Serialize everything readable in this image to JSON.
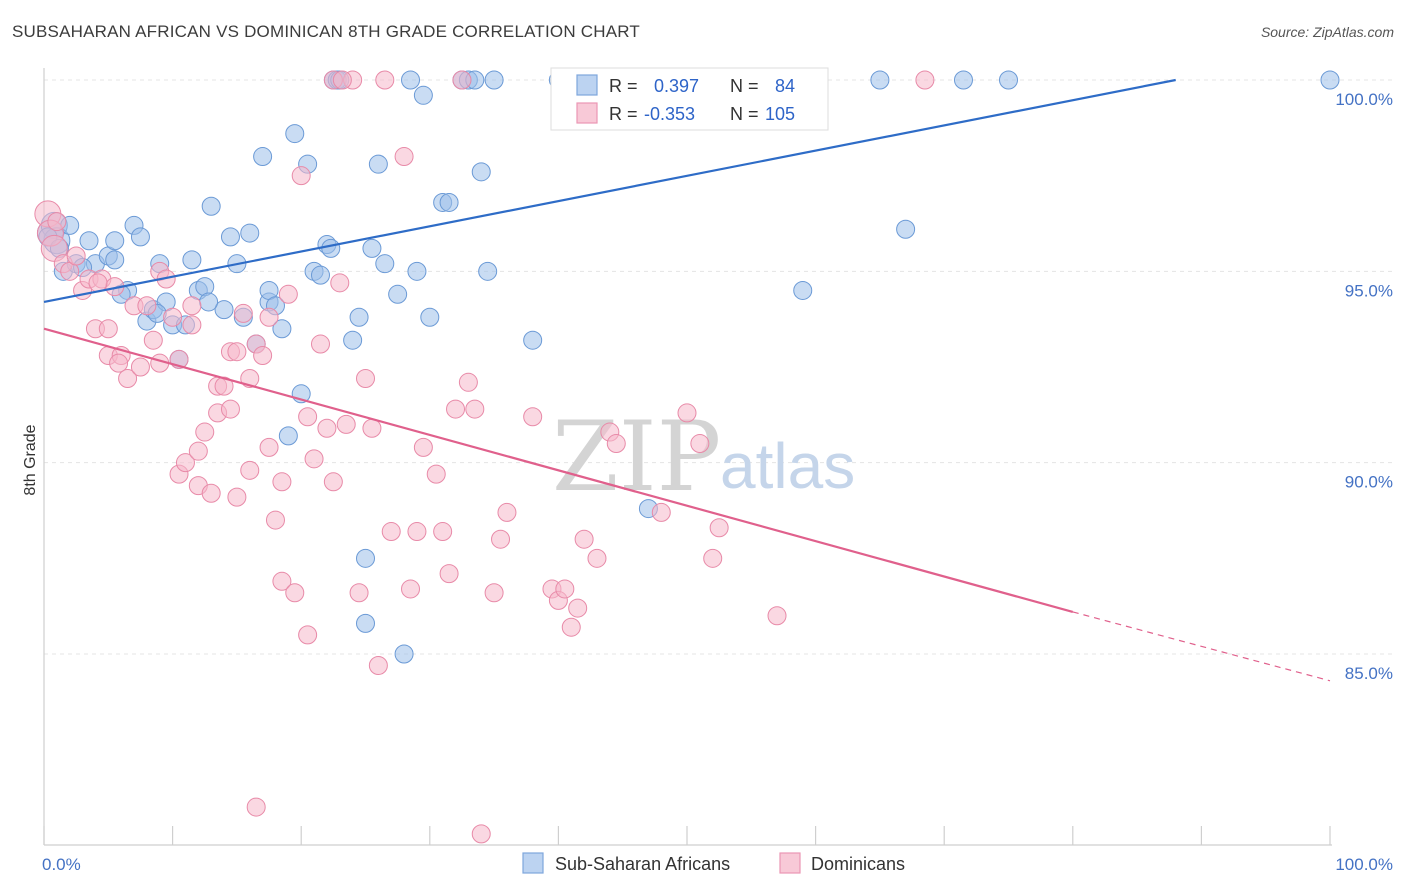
{
  "title": "SUBSAHARAN AFRICAN VS DOMINICAN 8TH GRADE CORRELATION CHART",
  "source": "Source: ZipAtlas.com",
  "watermark": {
    "zip": "ZIP",
    "atlas": "atlas"
  },
  "chart_data": {
    "type": "scatter",
    "xlabel": "",
    "ylabel": "8th Grade",
    "xlim": [
      0,
      100
    ],
    "ylim": [
      80.5,
      101.2
    ],
    "x_ticks": [
      0,
      10,
      20,
      30,
      40,
      50,
      60,
      70,
      80,
      90,
      100
    ],
    "x_tick_labels": {
      "left": "0.0%",
      "right": "100.0%"
    },
    "y_ticks": [
      85,
      90,
      95,
      100
    ],
    "y_tick_labels": [
      "85.0%",
      "90.0%",
      "95.0%",
      "100.0%"
    ],
    "grid": true,
    "legend_position": "top-center",
    "series": [
      {
        "name": "Sub-Saharan Africans",
        "color": "#9dbfea",
        "stroke": "#6b9ad6",
        "line_color": "#2e6cc7",
        "R": "0.397",
        "N": "84",
        "trend": {
          "x0": 0,
          "y0": 94.2,
          "x1": 88,
          "y1": 100.0,
          "dashed_to": null
        },
        "points": [
          [
            0.5,
            96.0
          ],
          [
            0.8,
            96.2
          ],
          [
            1.0,
            95.8
          ],
          [
            1.5,
            95.0
          ],
          [
            2.0,
            96.2
          ],
          [
            2.5,
            95.2
          ],
          [
            3.5,
            95.8
          ],
          [
            4.0,
            95.2
          ],
          [
            5.0,
            95.4
          ],
          [
            5.5,
            95.3
          ],
          [
            5.5,
            95.8
          ],
          [
            6.5,
            94.5
          ],
          [
            7.0,
            96.2
          ],
          [
            7.5,
            95.9
          ],
          [
            8.0,
            93.7
          ],
          [
            8.5,
            94.0
          ],
          [
            9.0,
            95.2
          ],
          [
            9.5,
            94.2
          ],
          [
            10.0,
            93.6
          ],
          [
            10.5,
            92.7
          ],
          [
            11.0,
            93.6
          ],
          [
            11.5,
            95.3
          ],
          [
            12.0,
            94.5
          ],
          [
            12.5,
            94.6
          ],
          [
            13.0,
            96.7
          ],
          [
            14.0,
            94.0
          ],
          [
            14.5,
            95.9
          ],
          [
            15.0,
            95.2
          ],
          [
            15.5,
            93.8
          ],
          [
            16.0,
            96.0
          ],
          [
            16.5,
            93.1
          ],
          [
            17.0,
            98.0
          ],
          [
            17.5,
            94.2
          ],
          [
            17.5,
            94.5
          ],
          [
            18.0,
            94.1
          ],
          [
            18.5,
            93.5
          ],
          [
            19.0,
            90.7
          ],
          [
            19.5,
            98.6
          ],
          [
            20.0,
            91.8
          ],
          [
            20.5,
            97.8
          ],
          [
            21.0,
            95.0
          ],
          [
            21.5,
            94.9
          ],
          [
            22.0,
            95.7
          ],
          [
            22.5,
            100.0
          ],
          [
            22.8,
            100.0
          ],
          [
            23.0,
            100.0
          ],
          [
            24.0,
            93.2
          ],
          [
            24.5,
            93.8
          ],
          [
            25.0,
            87.5
          ],
          [
            25.5,
            95.6
          ],
          [
            25.0,
            85.8
          ],
          [
            26.0,
            97.8
          ],
          [
            27.5,
            94.4
          ],
          [
            28.0,
            85.0
          ],
          [
            28.5,
            100.0
          ],
          [
            29.0,
            95.0
          ],
          [
            29.5,
            99.6
          ],
          [
            30.0,
            93.8
          ],
          [
            31.0,
            96.8
          ],
          [
            31.5,
            96.8
          ],
          [
            32.5,
            100.0
          ],
          [
            33.0,
            100.0
          ],
          [
            33.5,
            100.0
          ],
          [
            34.0,
            97.6
          ],
          [
            34.5,
            95.0
          ],
          [
            35.0,
            100.0
          ],
          [
            38.0,
            93.2
          ],
          [
            40.0,
            100.0
          ],
          [
            45.0,
            100.0
          ],
          [
            47.0,
            88.8
          ],
          [
            59.0,
            94.5
          ],
          [
            65.0,
            100.0
          ],
          [
            67.0,
            96.1
          ],
          [
            71.5,
            100.0
          ],
          [
            75.0,
            100.0
          ],
          [
            100.0,
            100.0
          ],
          [
            0.3,
            95.9
          ],
          [
            1.2,
            95.6
          ],
          [
            3.0,
            95.1
          ],
          [
            6.0,
            94.4
          ],
          [
            8.8,
            93.9
          ],
          [
            12.8,
            94.2
          ],
          [
            22.3,
            95.6
          ],
          [
            26.5,
            95.2
          ]
        ]
      },
      {
        "name": "Dominicans",
        "color": "#f5b8ca",
        "stroke": "#e88aa8",
        "line_color": "#e0608c",
        "R": "-0.353",
        "N": "105",
        "trend": {
          "x0": 0,
          "y0": 93.5,
          "x1": 80,
          "y1": 86.1,
          "dashed_to": {
            "x": 100,
            "y": 84.3
          }
        },
        "points": [
          [
            0.3,
            96.5
          ],
          [
            0.5,
            96.0
          ],
          [
            0.8,
            95.6
          ],
          [
            1.0,
            96.3
          ],
          [
            1.5,
            95.2
          ],
          [
            2.0,
            95.0
          ],
          [
            2.5,
            95.4
          ],
          [
            3.0,
            94.5
          ],
          [
            3.5,
            94.8
          ],
          [
            4.0,
            93.5
          ],
          [
            4.5,
            94.8
          ],
          [
            5.0,
            93.5
          ],
          [
            5.0,
            92.8
          ],
          [
            5.5,
            94.6
          ],
          [
            6.0,
            92.8
          ],
          [
            6.5,
            92.2
          ],
          [
            7.0,
            94.1
          ],
          [
            7.5,
            92.5
          ],
          [
            8.0,
            94.1
          ],
          [
            8.5,
            93.2
          ],
          [
            9.0,
            95.0
          ],
          [
            9.0,
            92.6
          ],
          [
            9.5,
            94.8
          ],
          [
            10.0,
            93.8
          ],
          [
            10.5,
            92.7
          ],
          [
            10.5,
            89.7
          ],
          [
            11.0,
            90.0
          ],
          [
            11.5,
            94.1
          ],
          [
            11.5,
            93.6
          ],
          [
            12.0,
            90.3
          ],
          [
            12.0,
            89.4
          ],
          [
            12.5,
            90.8
          ],
          [
            13.0,
            89.2
          ],
          [
            13.5,
            92.0
          ],
          [
            13.5,
            91.3
          ],
          [
            14.0,
            92.0
          ],
          [
            14.5,
            92.9
          ],
          [
            14.5,
            91.4
          ],
          [
            15.0,
            89.1
          ],
          [
            15.5,
            93.9
          ],
          [
            16.0,
            92.2
          ],
          [
            16.0,
            89.8
          ],
          [
            16.5,
            93.1
          ],
          [
            16.5,
            81.0
          ],
          [
            17.0,
            92.8
          ],
          [
            17.5,
            93.8
          ],
          [
            17.5,
            90.4
          ],
          [
            18.0,
            88.5
          ],
          [
            18.5,
            89.5
          ],
          [
            18.5,
            86.9
          ],
          [
            19.0,
            94.4
          ],
          [
            19.5,
            86.6
          ],
          [
            20.0,
            97.5
          ],
          [
            20.5,
            91.2
          ],
          [
            20.5,
            85.5
          ],
          [
            21.0,
            90.1
          ],
          [
            21.5,
            93.1
          ],
          [
            22.0,
            90.9
          ],
          [
            22.5,
            89.5
          ],
          [
            22.5,
            100.0
          ],
          [
            23.0,
            94.7
          ],
          [
            23.5,
            91.0
          ],
          [
            24.0,
            100.0
          ],
          [
            24.5,
            86.6
          ],
          [
            25.0,
            92.2
          ],
          [
            25.5,
            90.9
          ],
          [
            26.0,
            84.7
          ],
          [
            26.5,
            100.0
          ],
          [
            27.0,
            88.2
          ],
          [
            28.0,
            98.0
          ],
          [
            28.5,
            86.7
          ],
          [
            29.0,
            88.2
          ],
          [
            29.5,
            90.4
          ],
          [
            30.5,
            89.7
          ],
          [
            31.0,
            88.2
          ],
          [
            31.5,
            87.1
          ],
          [
            32.0,
            91.4
          ],
          [
            32.5,
            100.0
          ],
          [
            33.0,
            92.1
          ],
          [
            33.5,
            91.4
          ],
          [
            34.0,
            80.3
          ],
          [
            35.0,
            86.6
          ],
          [
            35.5,
            88.0
          ],
          [
            36.0,
            88.7
          ],
          [
            38.0,
            91.2
          ],
          [
            39.5,
            86.7
          ],
          [
            40.0,
            86.4
          ],
          [
            40.5,
            86.7
          ],
          [
            41.0,
            85.7
          ],
          [
            41.5,
            86.2
          ],
          [
            42.0,
            88.0
          ],
          [
            43.0,
            87.5
          ],
          [
            44.0,
            90.8
          ],
          [
            44.5,
            90.5
          ],
          [
            48.0,
            88.7
          ],
          [
            50.0,
            91.3
          ],
          [
            51.0,
            90.5
          ],
          [
            52.0,
            87.5
          ],
          [
            52.5,
            88.3
          ],
          [
            57.0,
            86.0
          ],
          [
            68.5,
            100.0
          ],
          [
            23.2,
            100.0
          ],
          [
            15.0,
            92.9
          ],
          [
            4.2,
            94.7
          ],
          [
            5.8,
            92.6
          ]
        ]
      }
    ]
  }
}
